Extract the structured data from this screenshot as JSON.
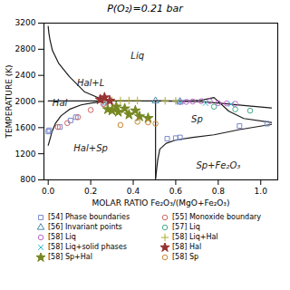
{
  "chart_data": {
    "type": "scatter",
    "title": "P(O₂)=0.21 bar",
    "xlabel": "MOLAR RATIO Fe₂O₃/(MgO+Fe₂O₃)",
    "ylabel": "TEMPERATURE (K)",
    "xlim": [
      -0.02,
      1.08
    ],
    "ylim": [
      800,
      3200
    ],
    "xticks": [
      {
        "value": 0,
        "label": "0.0"
      },
      0.2,
      0.4,
      0.6,
      0.8,
      {
        "value": 1.0,
        "label": "1.0"
      }
    ],
    "yticks": [
      800,
      1200,
      1600,
      2000,
      2400,
      2800,
      3200
    ],
    "annotations": [
      {
        "text": "Liq",
        "x": 0.42,
        "y": 2700
      },
      {
        "text": "Hal+L",
        "x": 0.2,
        "y": 2280
      },
      {
        "text": "Hal",
        "x": 0.055,
        "y": 1970
      },
      {
        "text": "Hal+Sp",
        "x": 0.2,
        "y": 1280
      },
      {
        "text": "Sp",
        "x": 0.7,
        "y": 1720
      },
      {
        "text": "Sp+Fe₂O₃",
        "x": 0.8,
        "y": 1020
      }
    ],
    "series": [
      {
        "type": "line",
        "color": "#1a1a1a",
        "x": [
          0.0,
          0.003,
          0.008,
          0.02,
          0.05,
          0.1,
          0.17,
          0.27
        ],
        "values": [
          3150,
          3050,
          2950,
          2780,
          2580,
          2380,
          2150,
          2010
        ]
      },
      {
        "type": "line",
        "color": "#1a1a1a",
        "x": [
          0.27,
          0.4,
          0.55,
          0.65,
          0.72,
          0.78,
          0.85,
          0.92,
          1.05
        ],
        "values": [
          2010,
          2010,
          2010,
          2010,
          2020,
          2060,
          1850,
          1740,
          1680
        ]
      },
      {
        "type": "line",
        "color": "#1a1a1a",
        "x": [
          0.0,
          0.008,
          0.018,
          0.035,
          0.06,
          0.1,
          0.155,
          0.205,
          0.255,
          0.27
        ],
        "values": [
          1330,
          1420,
          1540,
          1670,
          1780,
          1880,
          1948,
          1978,
          1998,
          2010
        ]
      },
      {
        "type": "line",
        "color": "#1a1a1a",
        "x": [
          0.0,
          0.27
        ],
        "values": [
          2010,
          2010
        ]
      },
      {
        "type": "line",
        "color": "#1a1a1a",
        "x": [
          0.505,
          0.505
        ],
        "values": [
          820,
          2010
        ]
      },
      {
        "type": "line",
        "color": "#1a1a1a",
        "x": [
          0.505,
          0.58,
          0.65,
          0.72,
          0.82,
          0.92,
          1.05
        ],
        "values": [
          2010,
          2005,
          2000,
          1998,
          1970,
          1940,
          1900
        ]
      },
      {
        "type": "line",
        "color": "#1a1a1a",
        "x": [
          0.505,
          0.515,
          0.525,
          0.555,
          0.6,
          0.68,
          0.78,
          0.9,
          1.05
        ],
        "values": [
          820,
          1100,
          1270,
          1360,
          1410,
          1450,
          1490,
          1570,
          1650
        ]
      },
      {
        "type": "scatter",
        "name": "[54] Phase boundaries",
        "marker": "square",
        "color": "#7788cc",
        "x": [
          0.0,
          0.005,
          0.055,
          0.105,
          0.13,
          0.26,
          0.56,
          0.6,
          0.62,
          0.9,
          1.03
        ],
        "values": [
          1540,
          1560,
          1610,
          1710,
          1760,
          1980,
          1430,
          1440,
          1450,
          1625,
          1660
        ]
      },
      {
        "type": "scatter",
        "name": "[55] Monoxide boundary",
        "marker": "circle",
        "color": "#cc6666",
        "x": [
          0.045,
          0.09,
          0.14,
          0.2,
          0.26
        ],
        "values": [
          1610,
          1670,
          1760,
          1870,
          1960
        ]
      },
      {
        "type": "scatter",
        "name": "[56] Invariant points",
        "marker": "triangle",
        "color": "#4488aa",
        "x": [
          0.27,
          0.505,
          0.62
        ],
        "values": [
          2010,
          2010,
          2000
        ]
      },
      {
        "type": "scatter",
        "name": "[57] Liq",
        "marker": "circle",
        "color": "#44aa88",
        "x": [
          0.78,
          0.88,
          0.95
        ],
        "values": [
          1920,
          1880,
          1860
        ]
      },
      {
        "type": "scatter",
        "name": "[58] Liq",
        "marker": "circle",
        "color": "#bb66cc",
        "x": [
          0.62,
          0.65,
          0.68,
          0.72,
          0.76,
          0.8,
          0.84,
          0.88
        ],
        "values": [
          1990,
          1995,
          2000,
          2005,
          2005,
          1975,
          1970,
          1965
        ]
      },
      {
        "type": "scatter",
        "name": "[58] Liq+Hal",
        "marker": "plus",
        "color": "#aaaa33",
        "x": [
          0.27,
          0.3,
          0.34,
          0.38,
          0.42,
          0.55,
          0.6
        ],
        "values": [
          2010,
          2015,
          2015,
          2015,
          2015,
          2010,
          2010
        ]
      },
      {
        "type": "scatter",
        "name": "[58] Liq+solid phases",
        "marker": "x",
        "color": "#33bbcc",
        "x": [
          0.62,
          0.74,
          0.86
        ],
        "values": [
          1990,
          1975,
          1960
        ]
      },
      {
        "type": "scatter",
        "name": "[58] Hal",
        "marker": "star",
        "color": "#993333",
        "x": [
          0.245,
          0.265,
          0.29
        ],
        "values": [
          2030,
          2060,
          2010
        ]
      },
      {
        "type": "scatter",
        "name": "[58] Sp+Hal",
        "marker": "star",
        "color": "#778822",
        "x": [
          0.28,
          0.3,
          0.33,
          0.38,
          0.43,
          0.47,
          0.32,
          0.36,
          0.41
        ],
        "values": [
          1880,
          1860,
          1840,
          1800,
          1770,
          1745,
          1920,
          1890,
          1860
        ]
      },
      {
        "type": "scatter",
        "name": "[58] Sp",
        "marker": "circle",
        "color": "#cc8833",
        "x": [
          0.34,
          0.42,
          0.47,
          0.505
        ],
        "values": [
          1640,
          1690,
          1680,
          1660
        ]
      }
    ]
  }
}
